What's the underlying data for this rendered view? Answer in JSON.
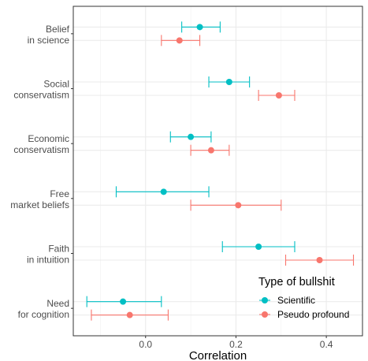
{
  "chart_data": {
    "type": "scatter",
    "subtype": "dot-and-whisker",
    "xlabel": "Correlation",
    "ylabel": "",
    "xlim": [
      -0.16,
      0.48
    ],
    "x_ticks": [
      0.0,
      0.2,
      0.4
    ],
    "x_tick_labels": [
      "0.0",
      "0.2",
      "0.4"
    ],
    "categories": [
      [
        "Belief",
        "in science"
      ],
      [
        "Social",
        "conservatism"
      ],
      [
        "Economic",
        "conservatism"
      ],
      [
        "Free",
        "market beliefs"
      ],
      [
        "Faith",
        "in intuition"
      ],
      [
        "Need",
        "for cognition"
      ]
    ],
    "legend": {
      "title": "Type of bullshit",
      "position": "bottom-right"
    },
    "grid": true,
    "series": [
      {
        "name": "Scientific",
        "color": "#00BFC4",
        "estimates": [
          0.12,
          0.185,
          0.1,
          0.04,
          0.25,
          -0.05
        ],
        "lower": [
          0.08,
          0.14,
          0.055,
          -0.065,
          0.17,
          -0.13
        ],
        "upper": [
          0.165,
          0.23,
          0.145,
          0.14,
          0.33,
          0.035
        ]
      },
      {
        "name": "Pseudo profound",
        "color": "#F8766D",
        "estimates": [
          0.075,
          0.295,
          0.145,
          0.205,
          0.385,
          -0.035
        ],
        "lower": [
          0.035,
          0.25,
          0.1,
          0.1,
          0.31,
          -0.12
        ],
        "upper": [
          0.12,
          0.33,
          0.185,
          0.3,
          0.46,
          0.05
        ]
      }
    ]
  }
}
